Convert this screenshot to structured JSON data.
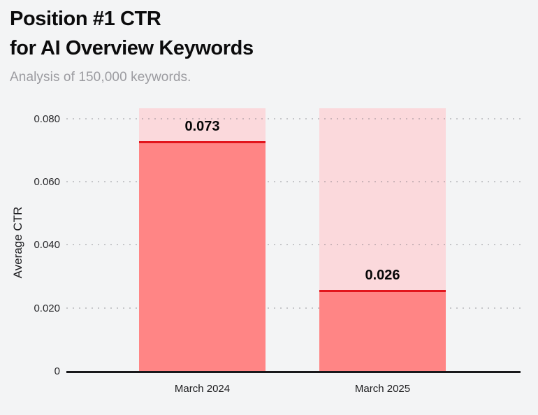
{
  "header": {
    "title_line1": "Position #1 CTR",
    "title_line2": "for AI Overview Keywords",
    "subtitle": "Analysis of 150,000 keywords."
  },
  "chart_data": {
    "type": "bar",
    "title": "Position #1 CTR for AI Overview Keywords",
    "subtitle": "Analysis of 150,000 keywords.",
    "categories": [
      "March 2024",
      "March 2025"
    ],
    "values": [
      0.073,
      0.026
    ],
    "value_labels": [
      "0.073",
      "0.026"
    ],
    "xlabel": "",
    "ylabel": "Average CTR",
    "ylim": [
      0,
      0.0835
    ],
    "yticks": [
      {
        "value": 0,
        "label": "0"
      },
      {
        "value": 0.02,
        "label": "0.020"
      },
      {
        "value": 0.04,
        "label": "0.040"
      },
      {
        "value": 0.06,
        "label": "0.060"
      },
      {
        "value": 0.08,
        "label": "0.080"
      }
    ],
    "grid": "dotted-horizontal",
    "legend": "none",
    "background_bars": true,
    "colors": {
      "bar_fill": "#FF8585",
      "bar_background": "#FBD9DC",
      "bar_cap_line": "#E2151C",
      "axis_line": "#18181B",
      "page_background": "#F3F4F5",
      "title_text": "#0B0B0C",
      "subtitle_text": "#9B9BA0",
      "tick_text": "#27272A"
    }
  }
}
